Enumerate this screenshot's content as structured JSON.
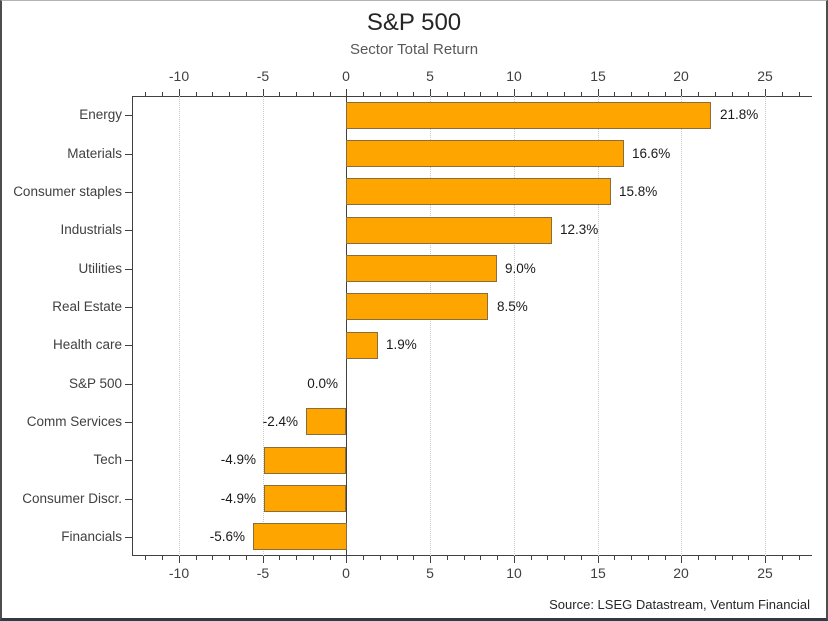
{
  "window": {
    "source": "Source: LSEG Datastream, Ventum Financial"
  },
  "chart_data": {
    "type": "bar",
    "orientation": "horizontal",
    "title": "S&P 500",
    "subtitle": "Sector Total Return",
    "categories": [
      "Energy",
      "Materials",
      "Consumer staples",
      "Industrials",
      "Utilities",
      "Real Estate",
      "Health care",
      "S&P 500",
      "Comm Services",
      "Tech",
      "Consumer Discr.",
      "Financials"
    ],
    "values": [
      21.8,
      16.6,
      15.8,
      12.3,
      9.0,
      8.5,
      1.9,
      0.0,
      -2.4,
      -4.9,
      -4.9,
      -5.6
    ],
    "value_labels": [
      "21.8%",
      "16.6%",
      "15.8%",
      "12.3%",
      "9.0%",
      "8.5%",
      "1.9%",
      "0.0%",
      "-2.4%",
      "-4.9%",
      "-4.9%",
      "-5.6%"
    ],
    "xlabel": "",
    "ylabel": "",
    "xlim": [
      -12.8,
      27.8
    ],
    "major_ticks": [
      -10,
      -5,
      0,
      5,
      10,
      15,
      20,
      25
    ],
    "major_tick_labels": [
      "-10",
      "-5",
      "0",
      "5",
      "10",
      "15",
      "20",
      "25"
    ],
    "minor_tick_step": 1,
    "grid": "vertical-dotted-at-major-ticks",
    "zero_line": true,
    "legend": "none",
    "colors": {
      "bar_fill": "#FFA500",
      "bar_border": "#8A6D3B",
      "axis": "#404040",
      "grid": "#C9C9C9",
      "title_text": "#262626",
      "subtitle_text": "#595959",
      "tick_text": "#404040",
      "value_text": "#1A1A1A",
      "source_text": "#262626"
    }
  }
}
